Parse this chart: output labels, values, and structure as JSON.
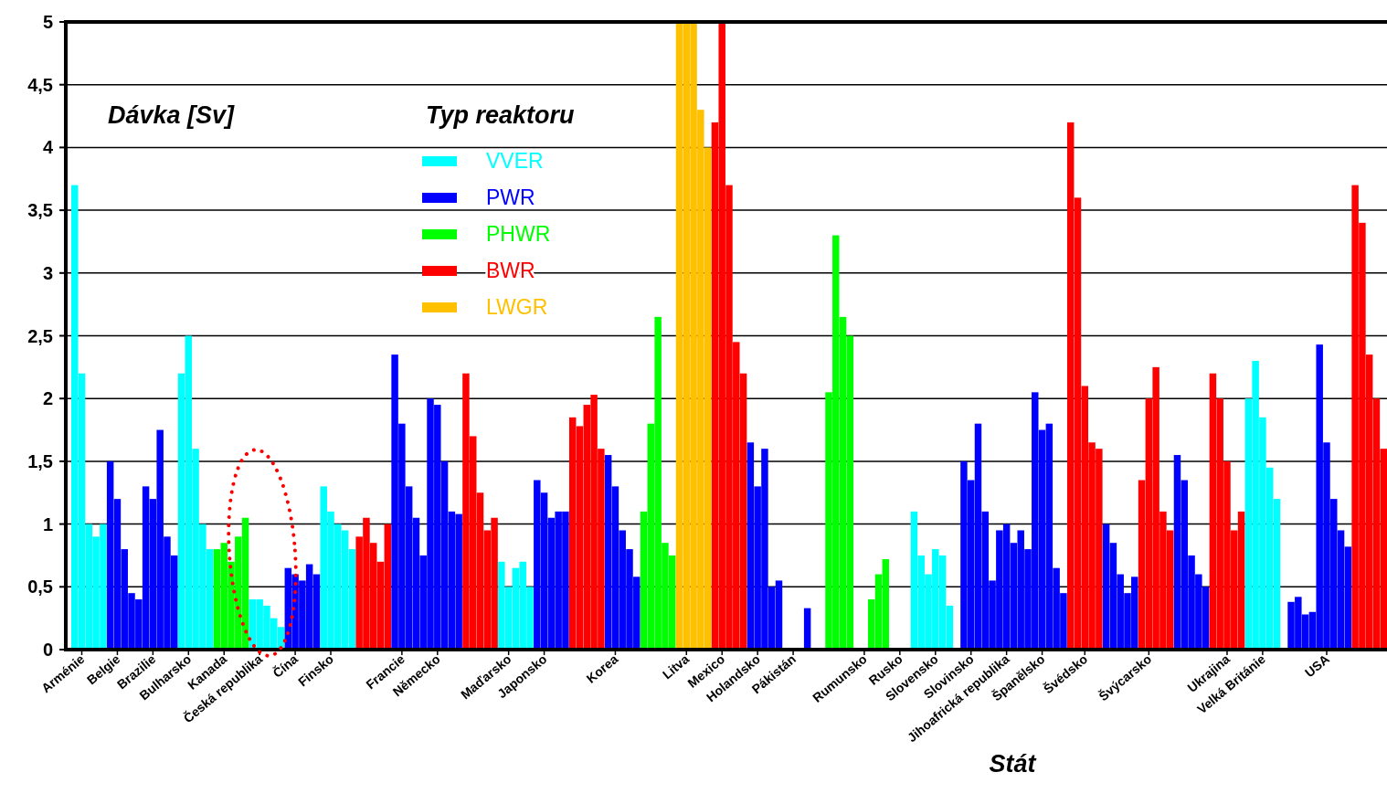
{
  "chart_data": {
    "type": "bar",
    "ylabel": "Dávka [Sv]",
    "xlabel": "Stát",
    "legend_title": "Typ reaktoru",
    "legend": "top left",
    "grid": "y",
    "ylim": [
      0,
      5
    ],
    "yticks": [
      0,
      {
        "value": 0.5,
        "label": "0,5"
      },
      1,
      {
        "value": 1.5,
        "label": "1,5"
      },
      2,
      {
        "value": 2.5,
        "label": "2,5"
      },
      3,
      {
        "value": 3.5,
        "label": "3,5"
      },
      4,
      {
        "value": 4.5,
        "label": "4,5"
      },
      5
    ],
    "categories": [
      null,
      "Arménie",
      null,
      null,
      null,
      null,
      "Belgie",
      null,
      null,
      null,
      null,
      "Brazilie",
      null,
      null,
      null,
      null,
      "Bulharsko",
      null,
      null,
      null,
      null,
      "Kanada",
      null,
      null,
      null,
      null,
      "Česká republika",
      null,
      null,
      null,
      null,
      "Čína",
      null,
      null,
      null,
      null,
      "Finsko",
      null,
      null,
      null,
      null,
      null,
      null,
      null,
      null,
      null,
      "Francie",
      null,
      null,
      null,
      null,
      "Německo",
      null,
      null,
      null,
      null,
      null,
      null,
      null,
      null,
      null,
      "Maďarsko",
      null,
      null,
      null,
      null,
      "Japonsko",
      null,
      null,
      null,
      null,
      null,
      null,
      null,
      null,
      null,
      "Korea",
      null,
      null,
      null,
      null,
      null,
      null,
      null,
      null,
      null,
      "Litva",
      null,
      null,
      null,
      null,
      "Mexico",
      null,
      null,
      null,
      null,
      "Holandsko",
      null,
      null,
      null,
      null,
      "Pákistán",
      null,
      null,
      null,
      null,
      null,
      null,
      null,
      null,
      null,
      "Rumunsko",
      null,
      null,
      null,
      null,
      "Rusko",
      null,
      null,
      null,
      null,
      "Slovensko",
      null,
      null,
      null,
      null,
      "Slovinsko",
      null,
      null,
      null,
      null,
      "Jihoafrická republika",
      null,
      null,
      null,
      null,
      "Španělsko",
      null,
      null,
      null,
      null,
      null,
      "Švédsko",
      null,
      null,
      null,
      null,
      null,
      null,
      null,
      null,
      "Švýcarsko",
      null,
      null,
      null,
      null,
      null,
      null,
      null,
      null,
      null,
      null,
      "Ukrajina",
      null,
      null,
      null,
      null,
      "Velká Británie",
      null,
      null,
      null,
      null,
      null,
      null,
      null,
      null,
      "USA",
      null,
      null,
      null,
      null,
      null,
      null,
      null,
      null
    ],
    "series": [
      {
        "name": "VVER",
        "color": "#00ffff",
        "values": [
          3.7,
          2.2,
          1.0,
          0.9,
          1.0,
          null,
          null,
          null,
          null,
          null,
          null,
          null,
          null,
          null,
          null,
          2.2,
          2.5,
          1.6,
          1.0,
          0.8,
          null,
          null,
          null,
          null,
          null,
          0.4,
          0.4,
          0.35,
          0.25,
          0.18,
          null,
          null,
          null,
          null,
          null,
          1.3,
          1.1,
          1.0,
          0.95,
          0.8,
          null,
          null,
          null,
          null,
          null,
          null,
          null,
          null,
          null,
          null,
          null,
          null,
          null,
          null,
          null,
          null,
          null,
          null,
          null,
          null,
          0.7,
          0.5,
          0.65,
          0.7,
          0.5,
          null,
          null,
          null,
          null,
          null,
          null,
          null,
          null,
          null,
          null,
          null,
          null,
          null,
          null,
          null,
          null,
          null,
          null,
          null,
          null,
          null,
          null,
          null,
          null,
          null,
          null,
          null,
          null,
          null,
          null,
          null,
          null,
          null,
          null,
          null,
          null,
          null,
          null,
          null,
          null,
          null,
          null,
          null,
          null,
          null,
          null,
          null,
          null,
          null,
          null,
          null,
          null,
          null,
          1.1,
          0.75,
          0.6,
          0.8,
          0.75,
          0.35,
          null,
          null,
          null,
          null,
          null,
          null,
          null,
          null,
          null,
          null,
          null,
          null,
          null,
          null,
          null,
          null,
          null,
          null,
          null,
          null,
          null,
          null,
          null,
          null,
          null,
          null,
          null,
          null,
          null,
          null,
          null,
          null,
          null,
          null,
          null,
          null,
          null,
          null,
          null,
          null,
          null,
          2.0,
          2.3,
          1.85,
          1.45,
          1.2,
          null,
          null,
          null,
          null,
          null,
          null,
          null,
          null,
          null,
          null,
          null,
          null,
          null,
          null,
          null
        ]
      },
      {
        "name": "PWR",
        "color": "#0000ff",
        "values": [
          null,
          null,
          null,
          null,
          null,
          1.5,
          1.2,
          0.8,
          0.45,
          0.4,
          1.3,
          1.2,
          1.75,
          0.9,
          0.75,
          null,
          null,
          null,
          null,
          null,
          null,
          null,
          null,
          null,
          null,
          null,
          null,
          null,
          null,
          null,
          0.65,
          0.6,
          0.55,
          0.68,
          0.6,
          null,
          null,
          null,
          null,
          null,
          null,
          null,
          null,
          null,
          null,
          2.35,
          1.8,
          1.3,
          1.05,
          0.75,
          2.0,
          1.95,
          1.5,
          1.1,
          1.08,
          null,
          null,
          null,
          null,
          null,
          null,
          null,
          null,
          null,
          null,
          1.35,
          1.25,
          1.05,
          1.1,
          1.1,
          null,
          null,
          null,
          null,
          null,
          1.55,
          1.3,
          0.95,
          0.8,
          0.58,
          null,
          null,
          null,
          null,
          null,
          null,
          null,
          null,
          null,
          null,
          null,
          null,
          null,
          null,
          null,
          1.65,
          1.3,
          1.6,
          0.5,
          0.55,
          null,
          null,
          null,
          0.33,
          null,
          null,
          null,
          null,
          null,
          null,
          null,
          null,
          null,
          null,
          null,
          null,
          null,
          null,
          null,
          null,
          null,
          null,
          null,
          null,
          null,
          1.5,
          1.35,
          1.8,
          1.1,
          0.55,
          0.95,
          1.0,
          0.85,
          0.95,
          0.8,
          2.05,
          1.75,
          1.8,
          0.65,
          0.45,
          null,
          null,
          null,
          null,
          null,
          1.0,
          0.85,
          0.6,
          0.45,
          0.58,
          null,
          null,
          null,
          null,
          null,
          1.55,
          1.35,
          0.75,
          0.6,
          0.5,
          null,
          null,
          null,
          null,
          null,
          null,
          null,
          null,
          null,
          null,
          null,
          0.38,
          0.42,
          0.28,
          0.3,
          2.43,
          1.65,
          1.2,
          0.95,
          0.82,
          null,
          null,
          null,
          null,
          null
        ]
      },
      {
        "name": "PHWR",
        "color": "#00ff00",
        "values": [
          null,
          null,
          null,
          null,
          null,
          null,
          null,
          null,
          null,
          null,
          null,
          null,
          null,
          null,
          null,
          null,
          null,
          null,
          null,
          null,
          0.8,
          0.85,
          0.7,
          0.9,
          1.05,
          null,
          null,
          null,
          null,
          null,
          null,
          null,
          null,
          null,
          null,
          null,
          null,
          null,
          null,
          null,
          null,
          null,
          null,
          null,
          null,
          null,
          null,
          null,
          null,
          null,
          null,
          null,
          null,
          null,
          null,
          null,
          null,
          null,
          null,
          null,
          null,
          null,
          null,
          null,
          null,
          null,
          null,
          null,
          null,
          null,
          null,
          null,
          null,
          null,
          null,
          null,
          null,
          null,
          null,
          null,
          1.1,
          1.8,
          2.65,
          0.85,
          0.75,
          null,
          null,
          null,
          null,
          null,
          null,
          null,
          null,
          null,
          null,
          null,
          null,
          null,
          null,
          null,
          null,
          null,
          null,
          null,
          null,
          null,
          2.05,
          3.3,
          2.65,
          2.5,
          null,
          null,
          0.4,
          0.6,
          0.72,
          null,
          null,
          null,
          null,
          null,
          null,
          null,
          null,
          null,
          null,
          null,
          null,
          null,
          null,
          null,
          null,
          null,
          null,
          null,
          null,
          null,
          null,
          null,
          null,
          null,
          null,
          null,
          null,
          null,
          null,
          null,
          null,
          null,
          null,
          null,
          null,
          null,
          null,
          null,
          null,
          null,
          null,
          null,
          null,
          null,
          null,
          null,
          null,
          null,
          null,
          null,
          null,
          null,
          null,
          null,
          null,
          null,
          null,
          null,
          null,
          null,
          null,
          null,
          null,
          null,
          null,
          null,
          null,
          null,
          null
        ]
      },
      {
        "name": "BWR",
        "color": "#ff0000",
        "values": [
          null,
          null,
          null,
          null,
          null,
          null,
          null,
          null,
          null,
          null,
          null,
          null,
          null,
          null,
          null,
          null,
          null,
          null,
          null,
          null,
          null,
          null,
          null,
          null,
          null,
          null,
          null,
          null,
          null,
          null,
          null,
          null,
          null,
          null,
          null,
          null,
          null,
          null,
          null,
          null,
          0.9,
          1.05,
          0.85,
          0.7,
          1.0,
          null,
          null,
          null,
          null,
          null,
          null,
          null,
          null,
          null,
          null,
          2.2,
          1.7,
          1.25,
          0.95,
          1.05,
          null,
          null,
          null,
          null,
          null,
          null,
          null,
          null,
          null,
          null,
          1.85,
          1.78,
          1.95,
          2.03,
          1.6,
          null,
          null,
          null,
          null,
          null,
          null,
          null,
          null,
          null,
          null,
          null,
          null,
          null,
          null,
          null,
          4.2,
          5,
          3.7,
          2.45,
          2.2,
          null,
          null,
          null,
          null,
          null,
          null,
          null,
          null,
          null,
          null,
          null,
          null,
          null,
          null,
          null,
          null,
          null,
          null,
          null,
          null,
          null,
          null,
          null,
          null,
          null,
          null,
          null,
          null,
          null,
          null,
          null,
          null,
          null,
          null,
          null,
          null,
          null,
          null,
          null,
          null,
          null,
          null,
          null,
          null,
          null,
          4.2,
          3.6,
          2.1,
          1.65,
          1.6,
          null,
          null,
          null,
          null,
          null,
          1.35,
          2.0,
          2.25,
          1.1,
          0.95,
          null,
          null,
          null,
          null,
          null,
          2.2,
          2.0,
          1.5,
          0.95,
          1.1,
          null,
          null,
          null,
          null,
          null,
          null,
          null,
          null,
          null,
          null,
          null,
          null,
          null,
          null,
          null,
          3.7,
          3.4,
          2.35,
          2.0,
          1.6
        ]
      },
      {
        "name": "LWGR",
        "color": "#ffc000",
        "values": [
          null,
          null,
          null,
          null,
          null,
          null,
          null,
          null,
          null,
          null,
          null,
          null,
          null,
          null,
          null,
          null,
          null,
          null,
          null,
          null,
          null,
          null,
          null,
          null,
          null,
          null,
          null,
          null,
          null,
          null,
          null,
          null,
          null,
          null,
          null,
          null,
          null,
          null,
          null,
          null,
          null,
          null,
          null,
          null,
          null,
          null,
          null,
          null,
          null,
          null,
          null,
          null,
          null,
          null,
          null,
          null,
          null,
          null,
          null,
          null,
          null,
          null,
          null,
          null,
          null,
          null,
          null,
          null,
          null,
          null,
          null,
          null,
          null,
          null,
          null,
          null,
          null,
          null,
          null,
          null,
          null,
          null,
          null,
          null,
          null,
          5,
          5,
          5,
          4.3,
          4.0,
          null,
          null,
          null,
          null,
          null,
          null,
          null,
          null,
          null,
          null,
          null,
          null,
          null,
          null,
          null,
          null,
          null,
          null,
          null,
          null,
          null,
          null,
          null,
          null,
          null,
          null,
          null,
          null,
          null,
          null,
          null,
          null,
          null,
          null,
          null,
          null,
          null,
          null,
          null,
          null,
          null,
          null,
          null,
          null,
          null,
          null,
          null,
          null,
          null,
          null,
          null,
          null,
          null,
          null,
          null,
          null,
          null,
          null,
          null,
          null,
          null,
          null,
          null,
          null,
          null,
          null,
          null,
          null,
          null,
          null,
          null,
          null,
          null,
          null,
          null,
          null,
          null,
          null,
          null,
          null,
          null,
          null,
          null,
          null,
          null,
          null,
          null,
          null,
          null,
          null,
          null,
          null,
          null,
          null,
          null
        ]
      }
    ]
  }
}
